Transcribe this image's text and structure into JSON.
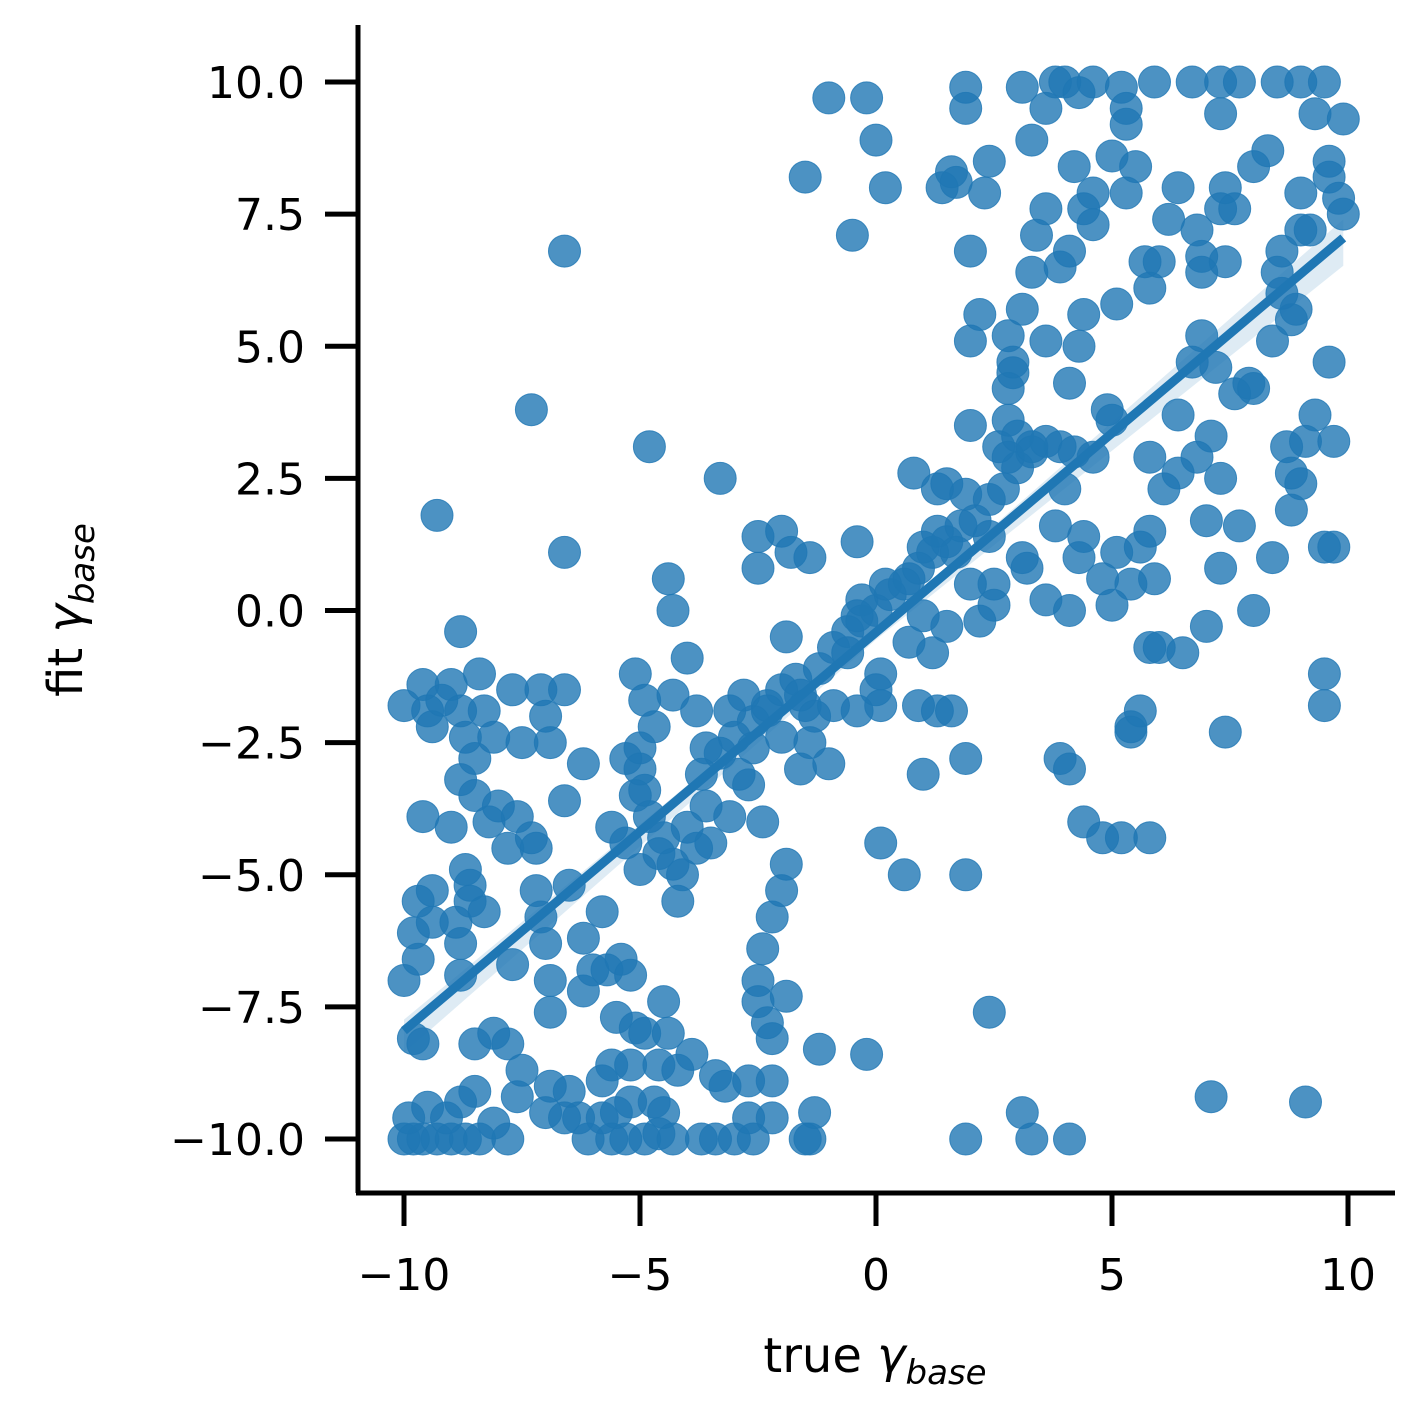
{
  "chart_data": {
    "type": "scatter",
    "title": "",
    "xlabel": {
      "text": "true ",
      "symbol": "γ",
      "subscript": "base"
    },
    "ylabel": {
      "text": "fit ",
      "symbol": "γ",
      "subscript": "base"
    },
    "xlim": [
      -10.9,
      10.9
    ],
    "ylim": [
      -11.0,
      11.0
    ],
    "xticks": [
      -10,
      -5,
      0,
      5,
      10
    ],
    "xtick_labels": [
      "−10",
      "−5",
      "0",
      "5",
      "10"
    ],
    "yticks": [
      -10.0,
      -7.5,
      -5.0,
      -2.5,
      0.0,
      2.5,
      5.0,
      7.5,
      10.0
    ],
    "ytick_labels": [
      "−10.0",
      "−7.5",
      "−5.0",
      "−2.5",
      "0.0",
      "2.5",
      "5.0",
      "7.5",
      "10.0"
    ],
    "grid": false,
    "colors": {
      "points": "#1f77b4",
      "line": "#1f77b4",
      "band": "#1f77b4"
    },
    "regression": {
      "x": [
        -10.0,
        9.9
      ],
      "y": [
        -7.95,
        7.05
      ],
      "ci_halfwidth": 0.35
    },
    "points": [
      [
        -10.0,
        -10.0
      ],
      [
        -9.8,
        -10.0
      ],
      [
        -9.6,
        -10.0
      ],
      [
        -9.3,
        -10.0
      ],
      [
        -9.0,
        -10.0
      ],
      [
        -8.7,
        -10.0
      ],
      [
        -8.4,
        -10.0
      ],
      [
        -7.8,
        -10.0
      ],
      [
        -9.9,
        -9.6
      ],
      [
        -9.5,
        -9.4
      ],
      [
        -9.1,
        -9.6
      ],
      [
        -8.8,
        -9.3
      ],
      [
        -8.5,
        -9.1
      ],
      [
        -8.1,
        -9.7
      ],
      [
        -7.6,
        -9.2
      ],
      [
        -9.8,
        -8.1
      ],
      [
        -9.6,
        -8.2
      ],
      [
        -8.5,
        -8.2
      ],
      [
        -8.1,
        -8.0
      ],
      [
        -7.8,
        -8.2
      ],
      [
        -7.5,
        -8.7
      ],
      [
        -10.0,
        -7.0
      ],
      [
        -9.7,
        -6.6
      ],
      [
        -9.8,
        -6.1
      ],
      [
        -9.4,
        -5.9
      ],
      [
        -9.7,
        -5.5
      ],
      [
        -9.4,
        -5.3
      ],
      [
        -8.8,
        -6.9
      ],
      [
        -8.8,
        -6.3
      ],
      [
        -8.9,
        -5.9
      ],
      [
        -8.6,
        -5.5
      ],
      [
        -8.6,
        -5.2
      ],
      [
        -8.7,
        -4.9
      ],
      [
        -8.3,
        -5.7
      ],
      [
        -7.7,
        -6.7
      ],
      [
        -9.6,
        -3.9
      ],
      [
        -9.0,
        -4.1
      ],
      [
        -8.8,
        -3.2
      ],
      [
        -8.5,
        -3.5
      ],
      [
        -8.5,
        -2.8
      ],
      [
        -8.2,
        -4.0
      ],
      [
        -8.0,
        -3.7
      ],
      [
        -7.8,
        -4.5
      ],
      [
        -7.6,
        -3.9
      ],
      [
        -7.3,
        -4.3
      ],
      [
        -7.2,
        -4.5
      ],
      [
        -10.0,
        -1.8
      ],
      [
        -9.6,
        -1.4
      ],
      [
        -9.5,
        -1.9
      ],
      [
        -9.4,
        -2.2
      ],
      [
        -9.2,
        -1.7
      ],
      [
        -9.0,
        -1.4
      ],
      [
        -8.8,
        -1.9
      ],
      [
        -8.7,
        -2.4
      ],
      [
        -8.4,
        -1.2
      ],
      [
        -8.3,
        -1.9
      ],
      [
        -8.1,
        -2.4
      ],
      [
        -7.7,
        -1.5
      ],
      [
        -7.5,
        -2.5
      ],
      [
        -7.1,
        -1.5
      ],
      [
        -7.0,
        -2.0
      ],
      [
        -6.9,
        -2.5
      ],
      [
        -6.6,
        -1.5
      ],
      [
        -8.8,
        -0.4
      ],
      [
        -9.3,
        1.8
      ],
      [
        -6.6,
        1.1
      ],
      [
        -6.6,
        6.8
      ],
      [
        -7.3,
        3.8
      ],
      [
        -4.8,
        3.1
      ],
      [
        -3.3,
        2.5
      ],
      [
        -7.2,
        -5.3
      ],
      [
        -7.1,
        -5.8
      ],
      [
        -7.0,
        -6.3
      ],
      [
        -6.9,
        -7.0
      ],
      [
        -6.9,
        -7.6
      ],
      [
        -6.5,
        -5.2
      ],
      [
        -6.6,
        -3.6
      ],
      [
        -6.2,
        -6.2
      ],
      [
        -6.2,
        -7.2
      ],
      [
        -6.0,
        -6.8
      ],
      [
        -5.8,
        -5.7
      ],
      [
        -5.7,
        -6.8
      ],
      [
        -5.4,
        -6.6
      ],
      [
        -5.2,
        -6.9
      ],
      [
        -5.5,
        -7.7
      ],
      [
        -5.1,
        -7.9
      ],
      [
        -4.9,
        -8.0
      ],
      [
        -4.5,
        -7.4
      ],
      [
        -4.4,
        -8.0
      ],
      [
        -4.2,
        -8.7
      ],
      [
        -3.9,
        -8.4
      ],
      [
        -3.4,
        -8.8
      ],
      [
        -3.2,
        -9.0
      ],
      [
        -2.7,
        -8.9
      ],
      [
        -2.5,
        -7.0
      ],
      [
        -2.5,
        -7.4
      ],
      [
        -2.3,
        -7.8
      ],
      [
        -2.2,
        -8.1
      ],
      [
        -1.9,
        -7.3
      ],
      [
        -2.4,
        -6.4
      ],
      [
        -2.2,
        -5.8
      ],
      [
        -2.0,
        -5.3
      ],
      [
        -1.9,
        -4.8
      ],
      [
        -2.4,
        -4.0
      ],
      [
        -1.2,
        -8.3
      ],
      [
        -1.3,
        -9.5
      ],
      [
        -1.4,
        -10.0
      ],
      [
        -2.2,
        -9.6
      ],
      [
        -3.0,
        -10.0
      ],
      [
        -3.4,
        -10.0
      ],
      [
        -3.7,
        -10.0
      ],
      [
        -4.3,
        -10.0
      ],
      [
        -4.9,
        -10.0
      ],
      [
        -5.3,
        -10.0
      ],
      [
        -5.6,
        -10.0
      ],
      [
        -6.1,
        -10.0
      ],
      [
        -6.3,
        -9.6
      ],
      [
        -6.6,
        -9.6
      ],
      [
        -7.0,
        -9.5
      ],
      [
        -5.5,
        -9.5
      ],
      [
        -5.2,
        -9.3
      ],
      [
        -4.7,
        -9.3
      ],
      [
        -4.5,
        -9.5
      ],
      [
        -4.6,
        -9.9
      ],
      [
        -5.8,
        -8.9
      ],
      [
        -5.8,
        -9.6
      ],
      [
        -6.5,
        -9.1
      ],
      [
        -6.9,
        -9.0
      ],
      [
        -5.6,
        -8.6
      ],
      [
        -5.2,
        -8.6
      ],
      [
        -4.6,
        -8.6
      ],
      [
        -2.2,
        -8.9
      ],
      [
        -2.7,
        -9.6
      ],
      [
        -2.6,
        -10.0
      ],
      [
        -1.5,
        -10.0
      ],
      [
        -0.2,
        -8.4
      ],
      [
        -6.2,
        -2.9
      ],
      [
        -5.3,
        -2.8
      ],
      [
        -5.1,
        -1.2
      ],
      [
        -4.9,
        -1.7
      ],
      [
        -4.7,
        -2.2
      ],
      [
        -4.3,
        -1.6
      ],
      [
        -4.0,
        -0.9
      ],
      [
        -4.4,
        0.6
      ],
      [
        -4.3,
        0.0
      ],
      [
        -5.0,
        -2.6
      ],
      [
        -5.1,
        -3.5
      ],
      [
        -4.8,
        -3.9
      ],
      [
        -4.5,
        -4.3
      ],
      [
        -4.3,
        -4.8
      ],
      [
        -4.1,
        -5.0
      ],
      [
        -3.8,
        -4.5
      ],
      [
        -3.5,
        -4.4
      ],
      [
        -3.1,
        -3.9
      ],
      [
        -4.2,
        -5.5
      ],
      [
        -3.7,
        -3.1
      ],
      [
        -3.3,
        -2.7
      ],
      [
        -3.0,
        -2.4
      ],
      [
        -2.6,
        -2.6
      ],
      [
        -2.6,
        -2.1
      ],
      [
        -2.3,
        -1.8
      ],
      [
        -2.0,
        -1.5
      ],
      [
        -1.7,
        -1.3
      ],
      [
        -1.5,
        -1.8
      ],
      [
        -1.2,
        -1.1
      ],
      [
        -0.9,
        -0.7
      ],
      [
        -0.6,
        -0.4
      ],
      [
        -0.3,
        -0.2
      ],
      [
        0.0,
        0.0
      ],
      [
        0.3,
        0.3
      ],
      [
        0.6,
        0.5
      ],
      [
        0.9,
        0.8
      ],
      [
        1.2,
        1.1
      ],
      [
        1.5,
        1.3
      ],
      [
        1.8,
        1.6
      ],
      [
        2.1,
        1.7
      ],
      [
        2.4,
        2.1
      ],
      [
        2.7,
        2.3
      ],
      [
        3.0,
        2.7
      ],
      [
        3.3,
        3.0
      ],
      [
        3.6,
        3.2
      ],
      [
        -3.6,
        -2.6
      ],
      [
        -3.1,
        -1.9
      ],
      [
        -2.8,
        -1.6
      ],
      [
        -2.3,
        -1.9
      ],
      [
        -1.6,
        -1.6
      ],
      [
        -1.3,
        -2.0
      ],
      [
        -0.9,
        -1.8
      ],
      [
        -3.8,
        -1.9
      ],
      [
        -2.7,
        -3.3
      ],
      [
        -2.0,
        -2.4
      ],
      [
        -1.6,
        -3.0
      ],
      [
        -1.0,
        -2.9
      ],
      [
        -1.4,
        -2.5
      ],
      [
        -2.9,
        -3.1
      ],
      [
        -3.6,
        -3.7
      ],
      [
        -4.0,
        -4.1
      ],
      [
        -4.6,
        -4.6
      ],
      [
        -5.0,
        -4.9
      ],
      [
        -5.3,
        -4.4
      ],
      [
        -4.9,
        -3.4
      ],
      [
        -5.0,
        -3.0
      ],
      [
        -5.6,
        -4.1
      ],
      [
        -2.5,
        1.4
      ],
      [
        -2.0,
        1.5
      ],
      [
        -1.8,
        1.1
      ],
      [
        -1.4,
        1.0
      ],
      [
        -2.5,
        0.8
      ],
      [
        -0.4,
        1.3
      ],
      [
        -1.9,
        -0.5
      ],
      [
        -0.3,
        0.2
      ],
      [
        0.2,
        0.5
      ],
      [
        0.1,
        -1.2
      ],
      [
        0.0,
        -1.5
      ],
      [
        -0.4,
        -1.9
      ],
      [
        0.1,
        -1.8
      ],
      [
        0.1,
        -4.4
      ],
      [
        0.6,
        -5.0
      ],
      [
        0.7,
        -0.6
      ],
      [
        0.9,
        -1.8
      ],
      [
        1.0,
        -3.1
      ],
      [
        1.3,
        -1.9
      ],
      [
        1.6,
        -1.9
      ],
      [
        1.9,
        -2.8
      ],
      [
        1.9,
        -5.0
      ],
      [
        1.9,
        -10.0
      ],
      [
        2.4,
        -7.6
      ],
      [
        3.1,
        -9.5
      ],
      [
        3.3,
        -10.0
      ],
      [
        4.1,
        -10.0
      ],
      [
        3.9,
        -2.8
      ],
      [
        4.1,
        -3.0
      ],
      [
        4.4,
        -4.0
      ],
      [
        4.8,
        -4.3
      ],
      [
        5.2,
        -4.3
      ],
      [
        5.4,
        -2.3
      ],
      [
        5.4,
        -2.2
      ],
      [
        5.6,
        -1.9
      ],
      [
        5.8,
        -4.3
      ],
      [
        5.8,
        -0.7
      ],
      [
        6.0,
        -0.7
      ],
      [
        6.5,
        -0.8
      ],
      [
        7.0,
        -0.3
      ],
      [
        7.4,
        -2.3
      ],
      [
        7.1,
        -9.2
      ],
      [
        9.1,
        -9.3
      ],
      [
        9.5,
        -1.2
      ],
      [
        9.5,
        -1.8
      ],
      [
        8.0,
        0.0
      ],
      [
        8.4,
        1.0
      ],
      [
        7.3,
        0.8
      ],
      [
        7.7,
        1.6
      ],
      [
        7.0,
        1.7
      ],
      [
        7.3,
        2.5
      ],
      [
        7.1,
        3.3
      ],
      [
        6.8,
        2.9
      ],
      [
        6.4,
        2.6
      ],
      [
        6.1,
        2.3
      ],
      [
        5.8,
        2.9
      ],
      [
        5.8,
        1.5
      ],
      [
        5.6,
        1.2
      ],
      [
        5.9,
        0.6
      ],
      [
        5.4,
        0.5
      ],
      [
        5.1,
        1.1
      ],
      [
        4.8,
        0.6
      ],
      [
        5.0,
        0.1
      ],
      [
        4.3,
        1.0
      ],
      [
        4.1,
        0.0
      ],
      [
        3.6,
        0.2
      ],
      [
        3.2,
        0.8
      ],
      [
        3.1,
        1.0
      ],
      [
        3.8,
        1.6
      ],
      [
        4.4,
        1.4
      ],
      [
        4.0,
        2.3
      ],
      [
        4.2,
        3.0
      ],
      [
        4.6,
        2.9
      ],
      [
        4.9,
        3.8
      ],
      [
        5.0,
        3.6
      ],
      [
        4.1,
        4.3
      ],
      [
        3.9,
        3.1
      ],
      [
        3.6,
        5.1
      ],
      [
        3.9,
        6.5
      ],
      [
        4.1,
        6.8
      ],
      [
        4.4,
        5.6
      ],
      [
        4.3,
        5.0
      ],
      [
        4.4,
        7.6
      ],
      [
        4.6,
        7.3
      ],
      [
        4.6,
        7.9
      ],
      [
        4.2,
        8.4
      ],
      [
        3.6,
        7.6
      ],
      [
        3.4,
        7.1
      ],
      [
        3.3,
        6.4
      ],
      [
        3.1,
        5.7
      ],
      [
        2.8,
        5.2
      ],
      [
        2.9,
        4.7
      ],
      [
        2.9,
        4.5
      ],
      [
        2.8,
        4.2
      ],
      [
        2.8,
        3.6
      ],
      [
        2.0,
        3.5
      ],
      [
        2.2,
        5.6
      ],
      [
        2.0,
        5.1
      ],
      [
        2.0,
        6.8
      ],
      [
        2.3,
        7.9
      ],
      [
        2.4,
        8.5
      ],
      [
        3.3,
        8.9
      ],
      [
        1.4,
        8.0
      ],
      [
        1.6,
        8.3
      ],
      [
        1.7,
        8.1
      ],
      [
        1.9,
        9.5
      ],
      [
        1.9,
        9.9
      ],
      [
        3.1,
        9.9
      ],
      [
        3.8,
        10.0
      ],
      [
        4.0,
        10.0
      ],
      [
        4.6,
        10.0
      ],
      [
        5.2,
        9.9
      ],
      [
        5.3,
        9.5
      ],
      [
        5.3,
        9.2
      ],
      [
        3.6,
        9.5
      ],
      [
        4.3,
        9.8
      ],
      [
        5.9,
        10.0
      ],
      [
        6.7,
        10.0
      ],
      [
        7.3,
        10.0
      ],
      [
        7.7,
        10.0
      ],
      [
        8.5,
        10.0
      ],
      [
        9.0,
        10.0
      ],
      [
        9.5,
        10.0
      ],
      [
        9.9,
        9.3
      ],
      [
        9.3,
        9.4
      ],
      [
        7.3,
        9.4
      ],
      [
        -1.0,
        9.7
      ],
      [
        -0.2,
        9.7
      ],
      [
        0.0,
        8.9
      ],
      [
        0.2,
        8.0
      ],
      [
        -1.5,
        8.2
      ],
      [
        -0.5,
        7.1
      ],
      [
        5.0,
        8.6
      ],
      [
        5.5,
        8.4
      ],
      [
        5.3,
        7.9
      ],
      [
        5.1,
        5.8
      ],
      [
        5.8,
        6.1
      ],
      [
        6.0,
        6.6
      ],
      [
        5.7,
        6.6
      ],
      [
        6.2,
        7.4
      ],
      [
        6.4,
        8.0
      ],
      [
        6.8,
        7.2
      ],
      [
        6.9,
        6.7
      ],
      [
        6.9,
        6.4
      ],
      [
        7.4,
        6.6
      ],
      [
        7.3,
        7.6
      ],
      [
        7.4,
        8.0
      ],
      [
        7.6,
        7.6
      ],
      [
        8.0,
        8.4
      ],
      [
        8.3,
        8.7
      ],
      [
        8.6,
        6.8
      ],
      [
        8.5,
        6.4
      ],
      [
        8.9,
        5.7
      ],
      [
        8.8,
        5.5
      ],
      [
        9.0,
        7.9
      ],
      [
        9.0,
        7.2
      ],
      [
        9.2,
        7.2
      ],
      [
        9.6,
        8.2
      ],
      [
        9.6,
        8.5
      ],
      [
        9.8,
        7.8
      ],
      [
        9.9,
        7.5
      ],
      [
        9.6,
        4.7
      ],
      [
        9.3,
        3.7
      ],
      [
        9.7,
        3.2
      ],
      [
        9.1,
        3.2
      ],
      [
        8.7,
        3.1
      ],
      [
        8.8,
        2.6
      ],
      [
        9.0,
        2.4
      ],
      [
        8.8,
        1.9
      ],
      [
        9.5,
        1.2
      ],
      [
        9.7,
        1.2
      ],
      [
        7.6,
        4.1
      ],
      [
        7.9,
        4.3
      ],
      [
        8.0,
        4.2
      ],
      [
        7.2,
        4.6
      ],
      [
        6.9,
        5.2
      ],
      [
        6.7,
        4.7
      ],
      [
        6.4,
        3.7
      ],
      [
        8.4,
        5.1
      ],
      [
        8.6,
        6.0
      ],
      [
        2.6,
        3.1
      ],
      [
        2.8,
        2.9
      ],
      [
        3.0,
        3.3
      ],
      [
        3.3,
        3.1
      ],
      [
        1.9,
        2.2
      ],
      [
        1.5,
        2.4
      ],
      [
        1.3,
        2.3
      ],
      [
        0.8,
        2.6
      ],
      [
        1.0,
        1.2
      ],
      [
        1.3,
        1.5
      ],
      [
        1.7,
        1.1
      ],
      [
        2.4,
        1.4
      ],
      [
        2.5,
        0.5
      ],
      [
        2.5,
        0.1
      ],
      [
        2.0,
        0.5
      ],
      [
        1.5,
        -0.3
      ],
      [
        1.0,
        -0.1
      ],
      [
        0.7,
        0.6
      ],
      [
        1.2,
        -0.8
      ],
      [
        2.2,
        -0.2
      ],
      [
        -0.6,
        -0.8
      ],
      [
        -0.4,
        -0.1
      ]
    ]
  }
}
